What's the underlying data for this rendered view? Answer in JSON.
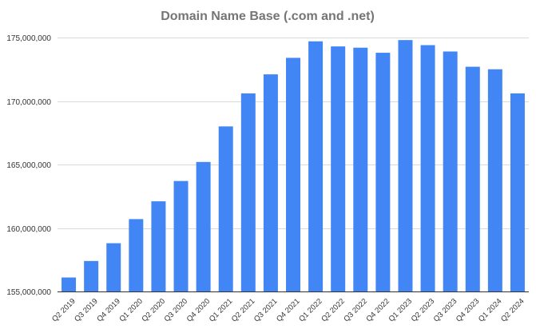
{
  "chart_data": {
    "type": "bar",
    "title": "Domain Name Base (.com and .net)",
    "xlabel": "",
    "ylabel": "",
    "categories": [
      "Q2 2019",
      "Q3 2019",
      "Q4 2019",
      "Q1 2020",
      "Q2 2020",
      "Q3 2020",
      "Q4 2020",
      "Q1 2021",
      "Q2 2021",
      "Q3 2021",
      "Q4 2021",
      "Q1 2022",
      "Q2 2022",
      "Q3 2022",
      "Q4 2022",
      "Q1 2023",
      "Q2 2023",
      "Q3 2023",
      "Q4 2023",
      "Q1 2024",
      "Q2 2024"
    ],
    "values": [
      156100000,
      157400000,
      158800000,
      160700000,
      162100000,
      163700000,
      165200000,
      168000000,
      170600000,
      172100000,
      173400000,
      174700000,
      174300000,
      174200000,
      173800000,
      174800000,
      174400000,
      173900000,
      172700000,
      172500000,
      170600000
    ],
    "ylim": [
      155000000,
      175000000
    ],
    "yticks": [
      155000000,
      160000000,
      165000000,
      170000000,
      175000000
    ],
    "ytick_labels": [
      "155,000,000",
      "160,000,000",
      "165,000,000",
      "170,000,000",
      "175,000,000"
    ],
    "grid": true,
    "legend": "none",
    "colors": {
      "bar": "#4285f4",
      "grid": "#d9d9d9",
      "title": "#757575",
      "text": "#333333"
    }
  }
}
